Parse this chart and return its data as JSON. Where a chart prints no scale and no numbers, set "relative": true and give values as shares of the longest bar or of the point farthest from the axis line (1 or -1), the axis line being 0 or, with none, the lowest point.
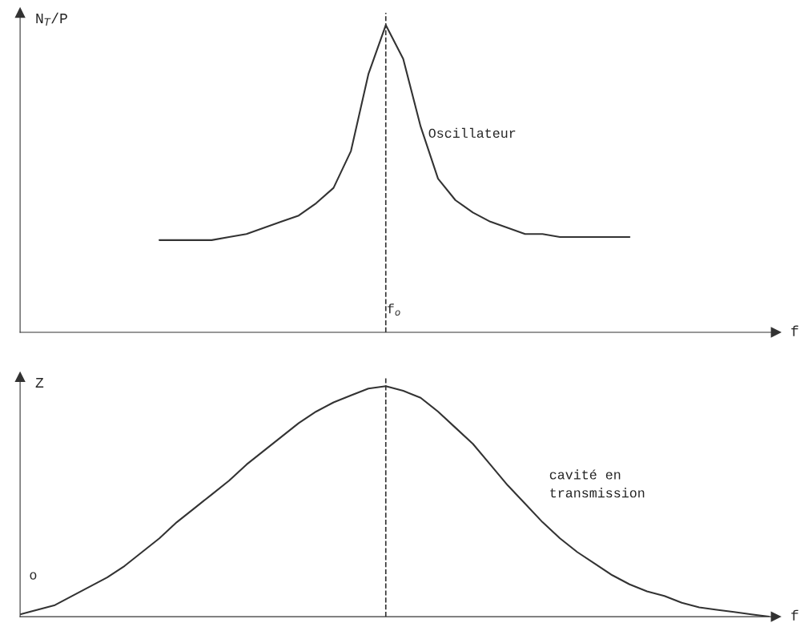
{
  "chart_data": [
    {
      "type": "line",
      "relative": true,
      "ylabel": "N$_{T}$/P",
      "xlabel": "f",
      "categories": [
        null,
        null,
        null,
        null,
        null,
        null,
        null,
        null,
        null,
        null,
        null,
        null,
        null,
        null,
        null,
        null,
        null,
        null,
        null,
        null,
        null,
        null,
        null,
        null,
        null,
        null,
        null,
        null,
        null,
        null,
        null,
        null,
        null,
        null,
        null,
        null,
        null,
        null,
        null,
        null,
        null,
        null,
        null,
        null
      ],
      "series": [
        {
          "color": "#333333",
          "values": [
            null,
            null,
            null,
            null,
            null,
            null,
            null,
            null,
            0.3,
            0.3,
            0.3,
            0.3,
            0.31,
            0.32,
            0.34,
            0.36,
            0.38,
            0.42,
            0.47,
            0.59,
            0.84,
            1,
            0.89,
            0.67,
            0.5,
            0.43,
            0.39,
            0.36,
            0.34,
            0.32,
            0.32,
            0.31,
            0.31,
            0.31,
            0.31,
            0.31,
            null,
            null,
            null,
            null,
            null,
            null,
            null,
            null
          ]
        }
      ],
      "annotations": [
        "Oscillateur",
        "f$_{o}$"
      ],
      "grid": false,
      "legend": false,
      "line_style": "solid",
      "marker": "none"
    },
    {
      "type": "line",
      "relative": true,
      "ylabel": "Z",
      "xlabel": "f",
      "categories": [
        null,
        null,
        null,
        null,
        null,
        null,
        null,
        null,
        null,
        null,
        null,
        null,
        null,
        null,
        null,
        null,
        null,
        null,
        null,
        null,
        null,
        null,
        null,
        null,
        null,
        null,
        null,
        null,
        null,
        null,
        null,
        null,
        null,
        null,
        null,
        null,
        null,
        null,
        null,
        null,
        null,
        null,
        null,
        null
      ],
      "series": [
        {
          "color": "#333333",
          "values": [
            0.01,
            0.03,
            0.05,
            0.09,
            0.13,
            0.17,
            0.22,
            0.28,
            0.34,
            0.41,
            0.47,
            0.53,
            0.59,
            0.66,
            0.72,
            0.78,
            0.84,
            0.89,
            0.93,
            0.96,
            0.99,
            1,
            0.98,
            0.95,
            0.89,
            0.82,
            0.75,
            0.66,
            0.57,
            0.49,
            0.41,
            0.34,
            0.28,
            0.23,
            0.18,
            0.14,
            0.11,
            0.09,
            0.06,
            0.04,
            0.03,
            0.02,
            0.01,
            0
          ]
        }
      ],
      "annotations": [
        "cavité en\ntransmission",
        "o"
      ],
      "grid": false,
      "legend": false,
      "line_style": "solid",
      "marker": "none"
    }
  ]
}
